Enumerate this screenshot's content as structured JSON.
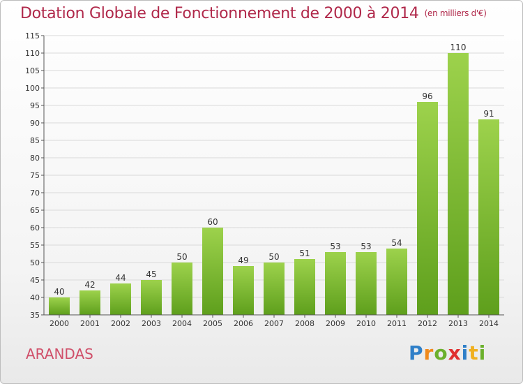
{
  "header": {
    "title": "Dotation Globale de Fonctionnement de 2000 à 2014",
    "unit": "(en milliers d'€)"
  },
  "footer": {
    "commune": "ARANDAS",
    "logo": "Proxiti",
    "logo_letters": [
      "P",
      "r",
      "o",
      "x",
      "i",
      "t",
      "i"
    ]
  },
  "colors": {
    "bar_top": "#9dd24c",
    "bar_bottom": "#5e9f1c",
    "title": "#b0284a",
    "grid": "#d9d9d9"
  },
  "chart_data": {
    "type": "bar",
    "title": "Dotation Globale de Fonctionnement de 2000 à 2014",
    "subtitle": "(en milliers d'€)",
    "xlabel": "",
    "ylabel": "",
    "ylim": [
      35,
      115
    ],
    "ytick_step": 5,
    "grid": true,
    "categories": [
      "2000",
      "2001",
      "2002",
      "2003",
      "2004",
      "2005",
      "2006",
      "2007",
      "2008",
      "2009",
      "2010",
      "2011",
      "2012",
      "2013",
      "2014"
    ],
    "values": [
      40,
      42,
      44,
      45,
      50,
      60,
      49,
      50,
      51,
      53,
      53,
      54,
      96,
      110,
      91
    ]
  }
}
